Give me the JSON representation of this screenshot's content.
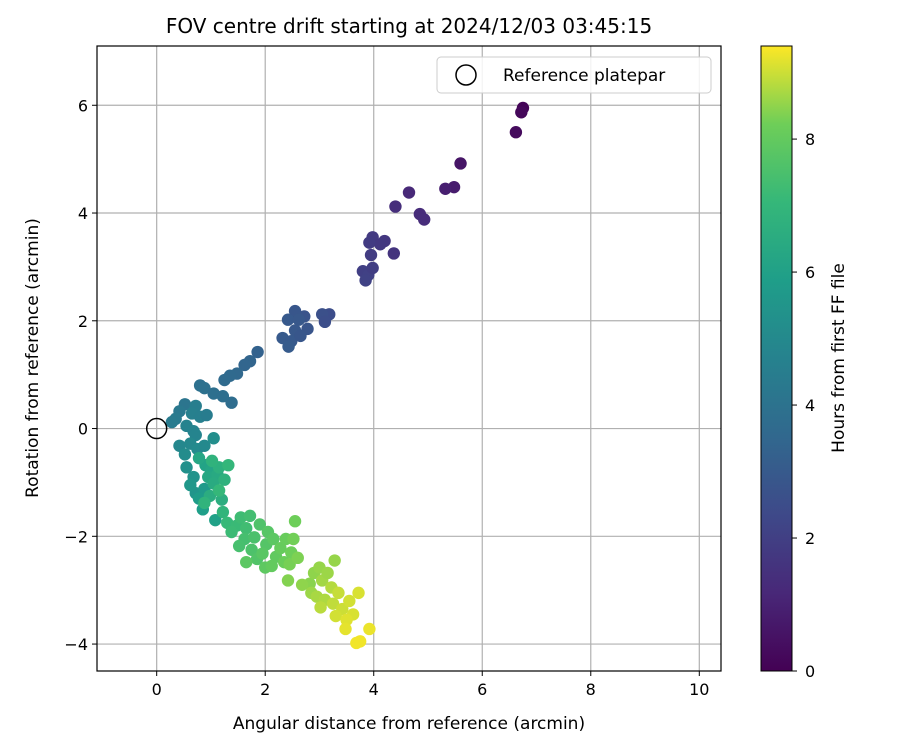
{
  "chart_data": {
    "type": "scatter",
    "title": "FOV centre drift starting at 2024/12/03 03:45:15",
    "xlabel": "Angular distance from reference (arcmin)",
    "ylabel": "Rotation from reference (arcmin)",
    "xlim": [
      -1.1,
      10.4
    ],
    "ylim": [
      -4.5,
      7.1
    ],
    "xticks": [
      0,
      2,
      4,
      6,
      8,
      10
    ],
    "yticks": [
      -4,
      -2,
      0,
      2,
      4,
      6
    ],
    "xtick_labels": [
      "0",
      "2",
      "4",
      "6",
      "8",
      "10"
    ],
    "ytick_labels": [
      "−4",
      "−2",
      "0",
      "2",
      "4",
      "6"
    ],
    "grid": true,
    "legend": {
      "position": "top-right",
      "entries": [
        {
          "label": "Reference platepar",
          "marker": "open-circle"
        }
      ]
    },
    "reference_point": {
      "x": 0,
      "y": 0
    },
    "colorbar": {
      "label": "Hours from first FF file",
      "range": [
        0,
        9.4
      ],
      "ticks": [
        0,
        2,
        4,
        6,
        8
      ],
      "tick_labels": [
        "0",
        "2",
        "4",
        "6",
        "8"
      ],
      "colormap": "viridis"
    },
    "points": [
      {
        "x": 6.75,
        "y": 5.95,
        "t": 0.1
      },
      {
        "x": 6.72,
        "y": 5.87,
        "t": 0.2
      },
      {
        "x": 6.62,
        "y": 5.5,
        "t": 0.3
      },
      {
        "x": 5.6,
        "y": 4.92,
        "t": 0.6
      },
      {
        "x": 5.48,
        "y": 4.48,
        "t": 0.8
      },
      {
        "x": 5.32,
        "y": 4.45,
        "t": 0.9
      },
      {
        "x": 4.65,
        "y": 4.38,
        "t": 1.2
      },
      {
        "x": 4.4,
        "y": 4.12,
        "t": 1.4
      },
      {
        "x": 4.85,
        "y": 3.98,
        "t": 1.3
      },
      {
        "x": 4.93,
        "y": 3.88,
        "t": 1.35
      },
      {
        "x": 3.98,
        "y": 3.55,
        "t": 1.8
      },
      {
        "x": 4.2,
        "y": 3.48,
        "t": 1.7
      },
      {
        "x": 4.12,
        "y": 3.42,
        "t": 1.75
      },
      {
        "x": 3.92,
        "y": 3.45,
        "t": 1.85
      },
      {
        "x": 4.37,
        "y": 3.25,
        "t": 1.6
      },
      {
        "x": 3.95,
        "y": 3.22,
        "t": 1.9
      },
      {
        "x": 3.8,
        "y": 2.92,
        "t": 2.0
      },
      {
        "x": 3.9,
        "y": 2.85,
        "t": 2.05
      },
      {
        "x": 3.98,
        "y": 2.98,
        "t": 1.95
      },
      {
        "x": 3.85,
        "y": 2.75,
        "t": 2.1
      },
      {
        "x": 3.18,
        "y": 2.12,
        "t": 2.5
      },
      {
        "x": 3.05,
        "y": 2.12,
        "t": 2.6
      },
      {
        "x": 2.72,
        "y": 2.08,
        "t": 2.75
      },
      {
        "x": 2.55,
        "y": 2.18,
        "t": 2.85
      },
      {
        "x": 2.42,
        "y": 2.02,
        "t": 2.95
      },
      {
        "x": 2.62,
        "y": 2.02,
        "t": 2.9
      },
      {
        "x": 3.1,
        "y": 1.98,
        "t": 2.55
      },
      {
        "x": 2.78,
        "y": 1.85,
        "t": 2.8
      },
      {
        "x": 2.55,
        "y": 1.82,
        "t": 2.9
      },
      {
        "x": 2.32,
        "y": 1.68,
        "t": 3.0
      },
      {
        "x": 2.48,
        "y": 1.62,
        "t": 2.95
      },
      {
        "x": 2.65,
        "y": 1.72,
        "t": 2.85
      },
      {
        "x": 2.43,
        "y": 1.52,
        "t": 3.05
      },
      {
        "x": 1.86,
        "y": 1.42,
        "t": 3.3
      },
      {
        "x": 1.72,
        "y": 1.25,
        "t": 3.4
      },
      {
        "x": 1.62,
        "y": 1.18,
        "t": 3.45
      },
      {
        "x": 1.48,
        "y": 1.02,
        "t": 3.55
      },
      {
        "x": 1.35,
        "y": 0.98,
        "t": 3.6
      },
      {
        "x": 1.25,
        "y": 0.9,
        "t": 3.65
      },
      {
        "x": 0.8,
        "y": 0.8,
        "t": 3.9
      },
      {
        "x": 0.88,
        "y": 0.75,
        "t": 3.95
      },
      {
        "x": 1.05,
        "y": 0.65,
        "t": 3.85
      },
      {
        "x": 1.22,
        "y": 0.6,
        "t": 3.8
      },
      {
        "x": 1.38,
        "y": 0.48,
        "t": 3.75
      },
      {
        "x": 0.52,
        "y": 0.45,
        "t": 4.1
      },
      {
        "x": 0.42,
        "y": 0.32,
        "t": 4.25
      },
      {
        "x": 0.35,
        "y": 0.18,
        "t": 4.35
      },
      {
        "x": 0.28,
        "y": 0.12,
        "t": 4.4
      },
      {
        "x": 0.72,
        "y": 0.42,
        "t": 4.5
      },
      {
        "x": 0.65,
        "y": 0.28,
        "t": 4.6
      },
      {
        "x": 0.8,
        "y": 0.22,
        "t": 4.55
      },
      {
        "x": 0.92,
        "y": 0.25,
        "t": 4.45
      },
      {
        "x": 0.55,
        "y": 0.05,
        "t": 4.7
      },
      {
        "x": 0.68,
        "y": -0.05,
        "t": 4.75
      },
      {
        "x": 0.72,
        "y": -0.12,
        "t": 4.8
      },
      {
        "x": 0.42,
        "y": -0.32,
        "t": 4.9
      },
      {
        "x": 0.62,
        "y": -0.28,
        "t": 4.95
      },
      {
        "x": 0.75,
        "y": -0.38,
        "t": 5.05
      },
      {
        "x": 0.52,
        "y": -0.48,
        "t": 5.1
      },
      {
        "x": 0.88,
        "y": -0.32,
        "t": 5.0
      },
      {
        "x": 1.05,
        "y": -0.18,
        "t": 5.2
      },
      {
        "x": 0.55,
        "y": -0.72,
        "t": 5.3
      },
      {
        "x": 0.68,
        "y": -0.9,
        "t": 5.4
      },
      {
        "x": 0.72,
        "y": -1.2,
        "t": 5.5
      },
      {
        "x": 0.62,
        "y": -1.05,
        "t": 5.6
      },
      {
        "x": 0.88,
        "y": -1.12,
        "t": 5.7
      },
      {
        "x": 0.78,
        "y": -1.3,
        "t": 5.8
      },
      {
        "x": 0.85,
        "y": -1.5,
        "t": 5.9
      },
      {
        "x": 1.08,
        "y": -1.7,
        "t": 6.0
      },
      {
        "x": 0.9,
        "y": -0.68,
        "t": 6.1
      },
      {
        "x": 1.0,
        "y": -0.78,
        "t": 6.2
      },
      {
        "x": 0.95,
        "y": -0.9,
        "t": 6.3
      },
      {
        "x": 0.78,
        "y": -0.55,
        "t": 6.25
      },
      {
        "x": 1.12,
        "y": -0.85,
        "t": 6.4
      },
      {
        "x": 1.05,
        "y": -1.02,
        "t": 6.45
      },
      {
        "x": 0.98,
        "y": -1.25,
        "t": 6.55
      },
      {
        "x": 1.2,
        "y": -1.32,
        "t": 6.6
      },
      {
        "x": 1.15,
        "y": -0.72,
        "t": 6.7
      },
      {
        "x": 1.25,
        "y": -0.95,
        "t": 6.75
      },
      {
        "x": 1.02,
        "y": -0.6,
        "t": 6.8
      },
      {
        "x": 1.22,
        "y": -1.55,
        "t": 6.9
      },
      {
        "x": 0.88,
        "y": -1.38,
        "t": 6.85
      },
      {
        "x": 1.32,
        "y": -0.68,
        "t": 7.0
      },
      {
        "x": 1.15,
        "y": -1.15,
        "t": 7.05
      },
      {
        "x": 1.3,
        "y": -1.75,
        "t": 7.1
      },
      {
        "x": 1.48,
        "y": -1.8,
        "t": 7.15
      },
      {
        "x": 1.38,
        "y": -1.92,
        "t": 7.2
      },
      {
        "x": 1.55,
        "y": -1.65,
        "t": 7.25
      },
      {
        "x": 1.65,
        "y": -1.85,
        "t": 7.3
      },
      {
        "x": 1.72,
        "y": -1.62,
        "t": 7.35
      },
      {
        "x": 1.62,
        "y": -2.05,
        "t": 7.4
      },
      {
        "x": 1.52,
        "y": -2.18,
        "t": 7.45
      },
      {
        "x": 1.8,
        "y": -2.02,
        "t": 7.5
      },
      {
        "x": 1.75,
        "y": -2.25,
        "t": 7.55
      },
      {
        "x": 1.9,
        "y": -1.78,
        "t": 7.6
      },
      {
        "x": 1.85,
        "y": -2.42,
        "t": 7.65
      },
      {
        "x": 2.02,
        "y": -2.15,
        "t": 7.7
      },
      {
        "x": 2.05,
        "y": -1.92,
        "t": 7.75
      },
      {
        "x": 1.95,
        "y": -2.32,
        "t": 7.8
      },
      {
        "x": 2.15,
        "y": -2.05,
        "t": 7.85
      },
      {
        "x": 2.0,
        "y": -2.58,
        "t": 7.9
      },
      {
        "x": 2.2,
        "y": -2.38,
        "t": 7.95
      },
      {
        "x": 1.65,
        "y": -2.48,
        "t": 7.85
      },
      {
        "x": 2.12,
        "y": -2.55,
        "t": 8.0
      },
      {
        "x": 2.28,
        "y": -2.22,
        "t": 8.05
      },
      {
        "x": 2.38,
        "y": -2.05,
        "t": 8.1
      },
      {
        "x": 2.35,
        "y": -2.48,
        "t": 8.15
      },
      {
        "x": 2.48,
        "y": -2.3,
        "t": 8.2
      },
      {
        "x": 2.52,
        "y": -2.05,
        "t": 8.25
      },
      {
        "x": 2.55,
        "y": -1.72,
        "t": 8.2
      },
      {
        "x": 2.45,
        "y": -2.52,
        "t": 8.3
      },
      {
        "x": 2.6,
        "y": -2.4,
        "t": 8.35
      },
      {
        "x": 2.42,
        "y": -2.82,
        "t": 8.4
      },
      {
        "x": 2.82,
        "y": -2.88,
        "t": 8.45
      },
      {
        "x": 2.9,
        "y": -2.68,
        "t": 8.5
      },
      {
        "x": 3.0,
        "y": -2.58,
        "t": 8.55
      },
      {
        "x": 2.85,
        "y": -3.05,
        "t": 8.6
      },
      {
        "x": 3.05,
        "y": -2.82,
        "t": 8.65
      },
      {
        "x": 3.15,
        "y": -2.68,
        "t": 8.6
      },
      {
        "x": 2.95,
        "y": -3.12,
        "t": 8.7
      },
      {
        "x": 3.1,
        "y": -3.18,
        "t": 8.75
      },
      {
        "x": 3.22,
        "y": -2.95,
        "t": 8.8
      },
      {
        "x": 3.28,
        "y": -2.45,
        "t": 8.55
      },
      {
        "x": 2.68,
        "y": -2.9,
        "t": 8.5
      },
      {
        "x": 3.02,
        "y": -3.32,
        "t": 8.85
      },
      {
        "x": 3.25,
        "y": -3.25,
        "t": 8.9
      },
      {
        "x": 3.35,
        "y": -3.05,
        "t": 8.95
      },
      {
        "x": 3.42,
        "y": -3.35,
        "t": 9.0
      },
      {
        "x": 3.3,
        "y": -3.48,
        "t": 9.05
      },
      {
        "x": 3.55,
        "y": -3.2,
        "t": 9.05
      },
      {
        "x": 3.62,
        "y": -3.45,
        "t": 9.1
      },
      {
        "x": 3.5,
        "y": -3.55,
        "t": 9.15
      },
      {
        "x": 3.48,
        "y": -3.72,
        "t": 9.2
      },
      {
        "x": 3.72,
        "y": -3.05,
        "t": 9.1
      },
      {
        "x": 3.68,
        "y": -3.98,
        "t": 9.3
      },
      {
        "x": 3.75,
        "y": -3.95,
        "t": 9.3
      },
      {
        "x": 3.92,
        "y": -3.72,
        "t": 9.25
      }
    ]
  }
}
